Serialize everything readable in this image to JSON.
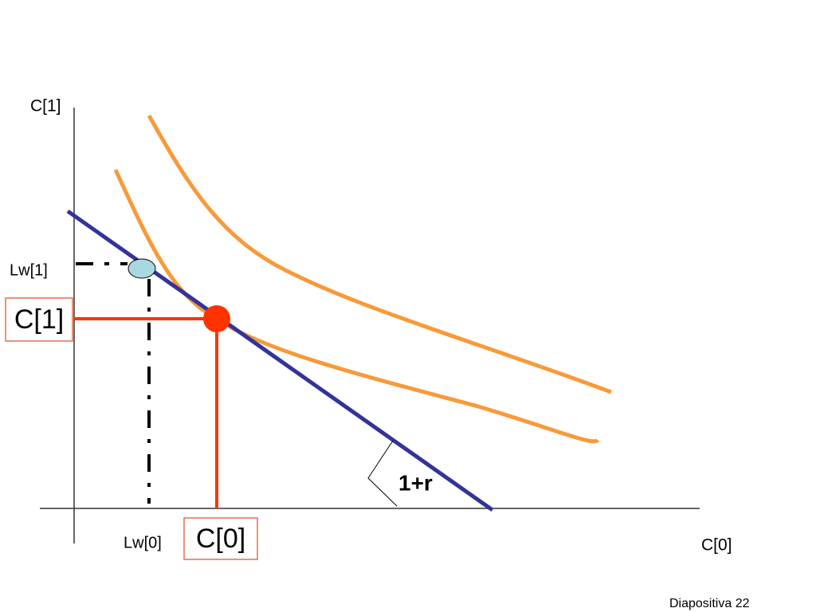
{
  "axes": {
    "y_label": "C[1]",
    "x_label": "C[0]"
  },
  "labels": {
    "lw1": "Lw[1]",
    "lw0": "Lw[0]",
    "c1_box": "C[1]",
    "c0_box": "C[0]",
    "slope": "1+r"
  },
  "footer": "Diapositiva 22"
}
